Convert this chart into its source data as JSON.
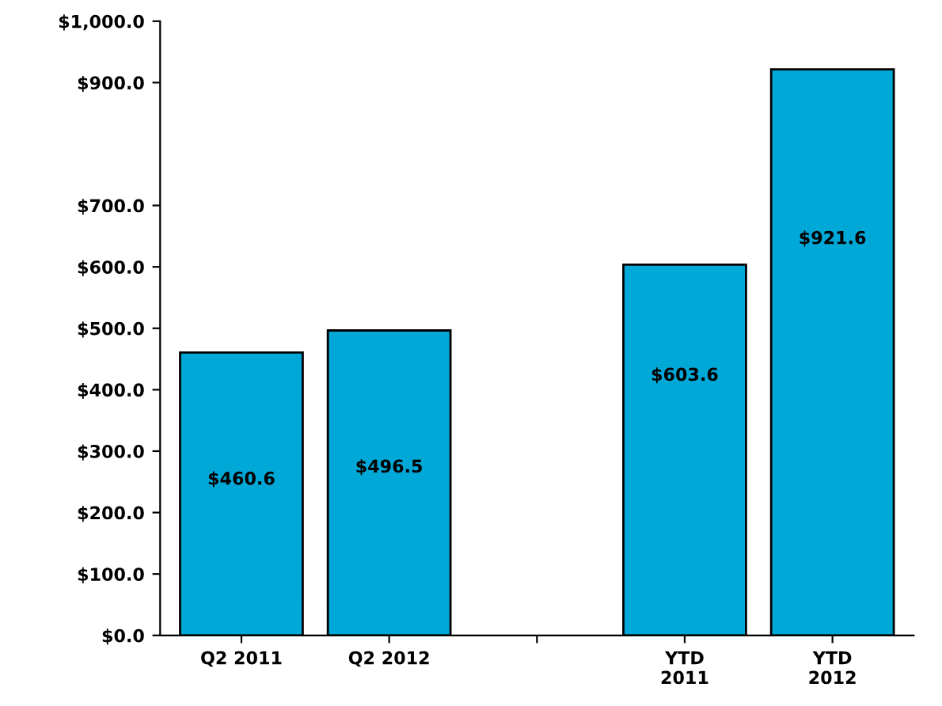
{
  "chart_data": {
    "type": "bar",
    "categories": [
      "Q2 2011",
      "Q2 2012",
      null,
      "YTD\n2011",
      "YTD\n2012"
    ],
    "values": [
      460.6,
      496.5,
      null,
      603.6,
      921.6
    ],
    "value_labels": [
      "$460.6",
      "$496.5",
      null,
      "$603.6",
      "$921.6"
    ],
    "color": "#00a8d8",
    "ylim": [
      0,
      1000
    ],
    "yticks": [
      {
        "value": 0,
        "label": "$0.0"
      },
      {
        "value": 100,
        "label": "$100.0"
      },
      {
        "value": 200,
        "label": "$200.0"
      },
      {
        "value": 300,
        "label": "$300.0"
      },
      {
        "value": 400,
        "label": "$400.0"
      },
      {
        "value": 500,
        "label": "$500.0"
      },
      {
        "value": 600,
        "label": "$600.0"
      },
      {
        "value": 700,
        "label": "$700.0"
      },
      {
        "value": 900,
        "label": "$900.0"
      },
      {
        "value": 1000,
        "label": "$1,000.0"
      }
    ],
    "grid": false,
    "legend": false
  }
}
